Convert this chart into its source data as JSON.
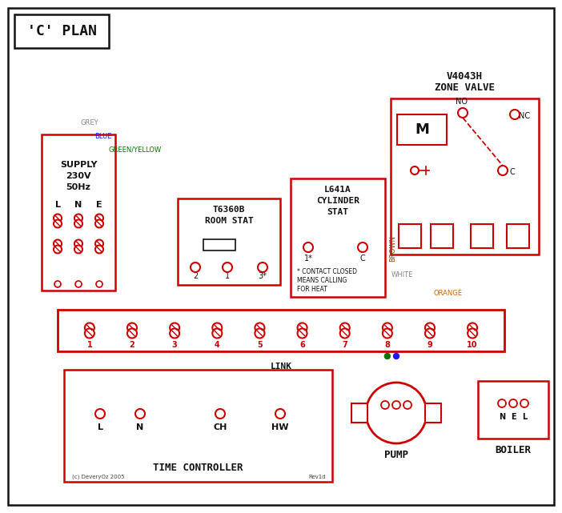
{
  "bg_color": "#ffffff",
  "red": "#cc0000",
  "blue": "#1a1aff",
  "green": "#007700",
  "grey": "#888888",
  "brown": "#8B4513",
  "orange": "#cc6600",
  "black": "#111111",
  "white_wire": "#aaaaaa",
  "title": "'C' PLAN",
  "supply_text1": "SUPPLY",
  "supply_text2": "230V",
  "supply_text3": "50Hz",
  "zone_valve_line1": "V4043H",
  "zone_valve_line2": "ZONE VALVE",
  "room_stat_line1": "T6360B",
  "room_stat_line2": "ROOM STAT",
  "cyl_stat_line1": "L641A",
  "cyl_stat_line2": "CYLINDER",
  "cyl_stat_line3": "STAT",
  "contact_text1": "* CONTACT CLOSED",
  "contact_text2": "MEANS CALLING",
  "contact_text3": "FOR HEAT",
  "time_ctrl_label": "TIME CONTROLLER",
  "pump_label": "PUMP",
  "boiler_label": "BOILER",
  "link_label": "LINK",
  "grey_label": "GREY",
  "blue_label": "BLUE",
  "gy_label": "GREEN/YELLOW",
  "brown_label": "BROWN",
  "white_label": "WHITE",
  "orange_label": "ORANGE",
  "copyright": "(c) DeveryOz 2005",
  "revision": "Rev1d",
  "lne_labels": [
    "L",
    "N",
    "E"
  ],
  "tc_labels": [
    "L",
    "N",
    "CH",
    "HW"
  ],
  "nel_labels": [
    "N",
    "E",
    "L"
  ]
}
